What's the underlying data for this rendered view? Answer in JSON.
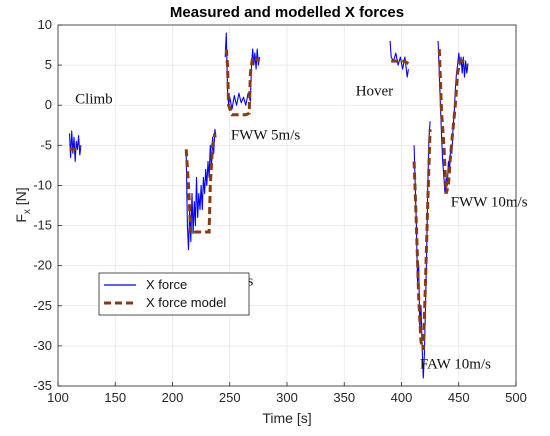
{
  "chart_data": {
    "type": "line",
    "title": "Measured and modelled X forces",
    "xlabel": "Time [s]",
    "ylabel": "F",
    "ylabel_sub": "x",
    "ylabel_unit": "[N]",
    "xlim": [
      100,
      500
    ],
    "ylim": [
      -35,
      10
    ],
    "xticks": [
      100,
      150,
      200,
      250,
      300,
      350,
      400,
      450,
      500
    ],
    "yticks": [
      10,
      5,
      0,
      -5,
      -10,
      -15,
      -20,
      -25,
      -30,
      -35
    ],
    "grid": true,
    "legend_position": "middle-left",
    "series": [
      {
        "name": "X force",
        "color": "#0000ff",
        "style": "solid",
        "segments": [
          [
            [
              110,
              -3.5
            ],
            [
              111,
              -6.5
            ],
            [
              112,
              -3.2
            ],
            [
              113,
              -6
            ],
            [
              114,
              -4
            ],
            [
              115,
              -7
            ],
            [
              116,
              -4.5
            ],
            [
              117,
              -5.5
            ],
            [
              118,
              -3.8
            ],
            [
              119,
              -6.2
            ],
            [
              120,
              -5
            ]
          ],
          [
            [
              212,
              -6
            ],
            [
              213,
              -15
            ],
            [
              214,
              -18
            ],
            [
              215,
              -13
            ],
            [
              216,
              -17
            ],
            [
              217,
              -11
            ],
            [
              218,
              -16
            ],
            [
              219,
              -12
            ],
            [
              220,
              -15
            ],
            [
              221,
              -9
            ],
            [
              222,
              -14
            ],
            [
              223,
              -11
            ],
            [
              224,
              -13
            ],
            [
              225,
              -10
            ],
            [
              226,
              -13
            ],
            [
              227,
              -9
            ],
            [
              228,
              -11
            ],
            [
              229,
              -8
            ],
            [
              230,
              -10
            ],
            [
              231,
              -7
            ],
            [
              232,
              -9
            ],
            [
              233,
              -5
            ],
            [
              234,
              -8
            ],
            [
              235,
              -4
            ],
            [
              236,
              -6
            ],
            [
              237,
              -3
            ],
            [
              238,
              -4
            ]
          ],
          [
            [
              246,
              6
            ],
            [
              247,
              9
            ],
            [
              248,
              2
            ],
            [
              249,
              0
            ],
            [
              250,
              1
            ],
            [
              252,
              -0.5
            ],
            [
              254,
              1.2
            ],
            [
              256,
              0
            ],
            [
              258,
              1.5
            ],
            [
              260,
              0.3
            ],
            [
              262,
              1
            ],
            [
              264,
              0
            ],
            [
              266,
              1.5
            ],
            [
              268,
              0.5
            ],
            [
              269,
              5
            ],
            [
              270,
              7
            ],
            [
              271,
              5
            ],
            [
              272,
              6.5
            ],
            [
              273,
              4.5
            ],
            [
              274,
              7
            ],
            [
              275,
              5
            ],
            [
              276,
              6
            ]
          ],
          [
            [
              390,
              8
            ],
            [
              391,
              6
            ],
            [
              393,
              5.5
            ],
            [
              395,
              6.5
            ],
            [
              397,
              5
            ],
            [
              399,
              6
            ],
            [
              401,
              4.5
            ],
            [
              403,
              6
            ],
            [
              405,
              3.5
            ],
            [
              406,
              4.5
            ]
          ],
          [
            [
              411,
              -5
            ],
            [
              412,
              -10
            ],
            [
              413,
              -15
            ],
            [
              414,
              -22
            ],
            [
              415,
              -20
            ],
            [
              416,
              -28
            ],
            [
              417,
              -25
            ],
            [
              418,
              -30
            ],
            [
              419,
              -34
            ],
            [
              420,
              -31
            ],
            [
              421,
              -25
            ],
            [
              422,
              -18
            ],
            [
              423,
              -10
            ],
            [
              424,
              -4
            ],
            [
              425,
              -2
            ]
          ],
          [
            [
              432,
              8
            ],
            [
              433,
              4
            ],
            [
              434,
              0
            ],
            [
              435,
              -4
            ],
            [
              436,
              -7
            ],
            [
              437,
              -9
            ],
            [
              438,
              -11
            ],
            [
              439,
              -9
            ],
            [
              440,
              -10
            ],
            [
              441,
              -7
            ],
            [
              442,
              -8
            ],
            [
              443,
              -5
            ],
            [
              444,
              -6
            ],
            [
              445,
              -3
            ],
            [
              446,
              -1
            ],
            [
              447,
              2
            ],
            [
              448,
              4
            ],
            [
              449,
              5
            ],
            [
              450,
              6.5
            ],
            [
              451,
              5
            ],
            [
              452,
              6
            ],
            [
              453,
              4
            ],
            [
              454,
              6
            ],
            [
              455,
              3.5
            ],
            [
              456,
              5.5
            ],
            [
              457,
              4
            ],
            [
              458,
              5
            ]
          ]
        ]
      },
      {
        "name": "X force model",
        "color": "#8b3a0f",
        "style": "dashed",
        "segments": [
          [
            [
              110,
              -5.5
            ],
            [
              115,
              -5.5
            ],
            [
              120,
              -5.2
            ]
          ],
          [
            [
              212,
              -5.5
            ],
            [
              214,
              -10
            ],
            [
              216,
              -16
            ],
            [
              220,
              -15.8
            ],
            [
              226,
              -15.8
            ],
            [
              232,
              -15.8
            ],
            [
              233,
              -10
            ],
            [
              235,
              -5
            ],
            [
              237,
              -3.5
            ]
          ],
          [
            [
              247,
              7
            ],
            [
              248,
              5
            ],
            [
              249,
              0
            ],
            [
              252,
              -1.2
            ],
            [
              258,
              -1.2
            ],
            [
              264,
              -1.2
            ],
            [
              267,
              -1
            ],
            [
              268,
              4
            ],
            [
              270,
              6
            ],
            [
              276,
              5.5
            ]
          ],
          [
            [
              391,
              5.5
            ],
            [
              396,
              5.5
            ],
            [
              402,
              5.5
            ],
            [
              406,
              5.2
            ]
          ],
          [
            [
              411,
              -7
            ],
            [
              413,
              -15
            ],
            [
              415,
              -24
            ],
            [
              417,
              -29.5
            ],
            [
              419,
              -30.5
            ],
            [
              421,
              -22
            ],
            [
              423,
              -12
            ],
            [
              425,
              -3
            ]
          ],
          [
            [
              433,
              7
            ],
            [
              435,
              -1
            ],
            [
              437,
              -5
            ],
            [
              439,
              -11
            ],
            [
              441,
              -10
            ],
            [
              443,
              -6
            ],
            [
              445,
              -3
            ],
            [
              447,
              0
            ],
            [
              449,
              4
            ],
            [
              451,
              5.5
            ],
            [
              454,
              5.5
            ],
            [
              458,
              5
            ]
          ]
        ]
      }
    ],
    "annotations": [
      {
        "text": "Climb",
        "x": 115,
        "y": 0.2
      },
      {
        "text": "FAW 5m/s",
        "x": 215,
        "y": -22.5
      },
      {
        "text": "FWW 5m/s",
        "x": 251,
        "y": -4.3
      },
      {
        "text": "Hover",
        "x": 360,
        "y": 1.2
      },
      {
        "text": "FWW 10m/s",
        "x": 443,
        "y": -12.6
      },
      {
        "text": "FAW 10m/s",
        "x": 416,
        "y": -32.8
      }
    ]
  }
}
